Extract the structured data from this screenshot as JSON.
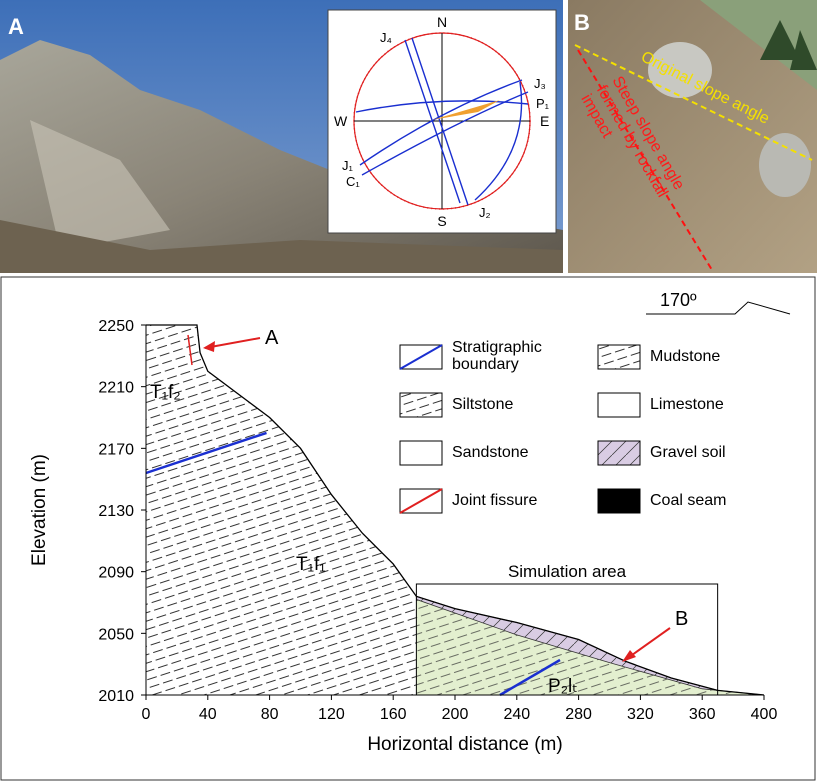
{
  "panels": {
    "a": {
      "label": "A",
      "stereonet": {
        "n": "N",
        "s": "S",
        "e": "E",
        "w": "W",
        "j1": "J₁",
        "j2": "J₂",
        "j3": "J₃",
        "j4": "J₄",
        "p1": "P₁",
        "c1": "C₁"
      }
    },
    "b": {
      "label": "B",
      "original": "Original slope angle",
      "steep": [
        "Steep slope angle",
        "formed by rockfall",
        "impact"
      ]
    }
  },
  "chart_data": {
    "type": "cross-section",
    "xlabel": "Horizontal distance (m)",
    "ylabel": "Elevation (m)",
    "orientation": "170º",
    "xlim": [
      0,
      400
    ],
    "ylim": [
      2010,
      2250
    ],
    "xticks": [
      0,
      40,
      80,
      120,
      160,
      200,
      240,
      280,
      320,
      360,
      400
    ],
    "yticks": [
      2010,
      2050,
      2090,
      2130,
      2170,
      2210,
      2250
    ],
    "x": [
      0,
      33,
      35,
      40,
      60,
      80,
      100,
      120,
      140,
      160,
      175,
      200,
      240,
      280,
      310,
      340,
      370,
      400
    ],
    "profile": [
      2250,
      2250,
      2232,
      2220,
      2205,
      2190,
      2170,
      2140,
      2115,
      2095,
      2074,
      2066,
      2057,
      2046,
      2032,
      2021,
      2013,
      2010
    ],
    "boundary": {
      "x": [
        0,
        78
      ],
      "y": [
        2154,
        2180
      ]
    },
    "gravel_base": {
      "x": [
        175,
        240,
        300,
        360,
        400
      ],
      "y": [
        2072,
        2049,
        2031,
        2014,
        2010
      ]
    },
    "simulation_area": {
      "label": "Simulation area",
      "x": [
        175,
        370
      ],
      "y": [
        2010,
        2082
      ]
    },
    "annotations": {
      "a": "A",
      "b": "B",
      "t1f2": "T₁f₂",
      "t1f1": "T₁f₁",
      "p2lt": "P₂lₜ"
    },
    "legend": [
      "Stratigraphic boundary",
      "Siltstone",
      "Sandstone",
      "Joint fissure",
      "Mudstone",
      "Limestone",
      "Gravel soil",
      "Coal seam"
    ]
  }
}
